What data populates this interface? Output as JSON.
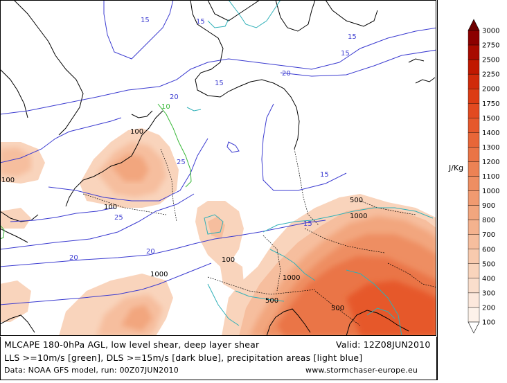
{
  "caption": {
    "line1": "MLCAPE 180-0hPa AGL, low level shear, deep layer shear",
    "valid": "Valid: 12Z08JUN2010",
    "line2": "LLS >=10m/s [green], DLS >=15m/s [dark blue], precipitation areas [light blue]",
    "line3": "Data: NOAA GFS model, run: 00Z07JUN2010",
    "website": "www.stormchaser-europe.eu"
  },
  "legend": {
    "unit": "J/Kg",
    "levels": [
      "3000",
      "2750",
      "2500",
      "2250",
      "2000",
      "1750",
      "1500",
      "1400",
      "1300",
      "1200",
      "1100",
      "1000",
      "900",
      "800",
      "700",
      "600",
      "500",
      "400",
      "300",
      "200",
      "100"
    ],
    "colors": [
      "#6e0000",
      "#8c0000",
      "#a80a00",
      "#c01800",
      "#d02a0a",
      "#dc3c14",
      "#e24a20",
      "#e6582c",
      "#e86638",
      "#ea7446",
      "#ec8254",
      "#ee8e62",
      "#f09a70",
      "#f2a67e",
      "#f4b28e",
      "#f6be9e",
      "#f8caae",
      "#f9d4bc",
      "#fadecc",
      "#fce8dc",
      "#fdf2ea"
    ]
  },
  "map": {
    "cape_labels": [
      "100",
      "100",
      "100",
      "100",
      "1000",
      "500",
      "1000",
      "1000",
      "500",
      "500"
    ],
    "dls_labels": [
      "15",
      "15",
      "15",
      "20",
      "20",
      "20",
      "20",
      "25",
      "25",
      "15",
      "15",
      "15",
      "15"
    ],
    "lls_labels": [
      "10"
    ]
  }
}
